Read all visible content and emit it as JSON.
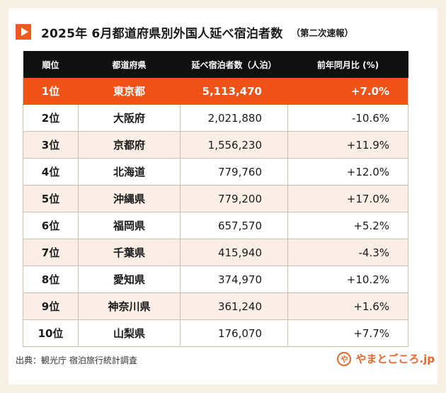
{
  "title": {
    "main": "2025年 6月都道府県別外国人延べ宿泊者数",
    "sub": "（第二次速報）"
  },
  "table": {
    "headers": [
      "順位",
      "都道府県",
      "延べ宿泊者数（人泊）",
      "前年同月比 (%)"
    ],
    "rows": [
      {
        "rank": "1位",
        "prefecture": "東京都",
        "value": "5,113,470",
        "change": "+7.0%"
      },
      {
        "rank": "2位",
        "prefecture": "大阪府",
        "value": "2,021,880",
        "change": "-10.6%"
      },
      {
        "rank": "3位",
        "prefecture": "京都府",
        "value": "1,556,230",
        "change": "+11.9%"
      },
      {
        "rank": "4位",
        "prefecture": "北海道",
        "value": "779,760",
        "change": "+12.0%"
      },
      {
        "rank": "5位",
        "prefecture": "沖縄県",
        "value": "779,200",
        "change": "+17.0%"
      },
      {
        "rank": "6位",
        "prefecture": "福岡県",
        "value": "657,570",
        "change": "+5.2%"
      },
      {
        "rank": "7位",
        "prefecture": "千葉県",
        "value": "415,940",
        "change": "-4.3%"
      },
      {
        "rank": "8位",
        "prefecture": "愛知県",
        "value": "374,970",
        "change": "+10.2%"
      },
      {
        "rank": "9位",
        "prefecture": "神奈川県",
        "value": "361,240",
        "change": "+1.6%"
      },
      {
        "rank": "10位",
        "prefecture": "山梨県",
        "value": "176,070",
        "change": "+7.7%"
      }
    ]
  },
  "source": "出典：観光庁 宿泊旅行統計調査",
  "logo": {
    "mark": "や",
    "text": "やまとごころ.jp"
  },
  "colors": {
    "accent": "#f05217",
    "header_bg": "#101010",
    "stripe": "#fbeee6",
    "background": "#f6efe4"
  },
  "icons": {
    "title_marker": "play-icon"
  }
}
